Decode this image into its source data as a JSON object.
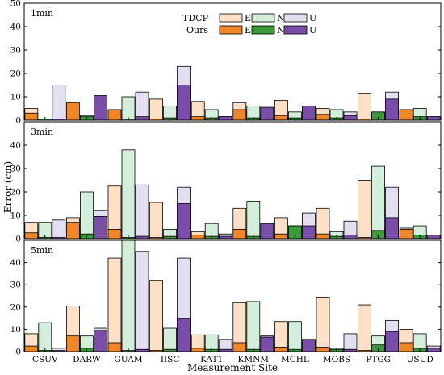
{
  "chart_data": {
    "type": "bar",
    "xlabel": "Measurement Site",
    "ylabel": "Error (cm)",
    "ylim": [
      0,
      50
    ],
    "yticks": [
      0,
      10,
      20,
      30,
      40,
      50
    ],
    "categories": [
      "CSUV",
      "DARW",
      "GUAM",
      "IISC",
      "KAT1",
      "KMNM",
      "MCHL",
      "MOBS",
      "PTGG",
      "USUD"
    ],
    "legend": {
      "placement": "top-center",
      "groups": [
        {
          "name": "TDCP",
          "entries": [
            "E",
            "N",
            "U"
          ]
        },
        {
          "name": "Ours",
          "entries": [
            "E",
            "N",
            "U"
          ]
        }
      ]
    },
    "colors": {
      "tdcp_e": "#fde0c5",
      "tdcp_n": "#d3efdc",
      "tdcp_u": "#e3def0",
      "ours_e": "#f28627",
      "ours_n": "#3a9a3a",
      "ours_u": "#7a4ea8",
      "edge": "#000000"
    },
    "panels": [
      {
        "label": "1min",
        "series": [
          {
            "name": "TDCP E",
            "values": [
              5.0,
              0,
              4.5,
              9.0,
              8.0,
              7.5,
              8.5,
              5.0,
              11.5,
              4.5
            ]
          },
          {
            "name": "TDCP N",
            "values": [
              0,
              2.0,
              10.0,
              6.0,
              4.5,
              6.0,
              3.5,
              4.5,
              3.5,
              5.0
            ]
          },
          {
            "name": "TDCP U",
            "values": [
              15.0,
              0,
              12.0,
              23.0,
              1.5,
              5.0,
              6.0,
              3.5,
              12.0,
              1.5
            ]
          },
          {
            "name": "Ours E",
            "values": [
              3.0,
              7.5,
              4.5,
              0.5,
              1.5,
              4.5,
              2.0,
              2.5,
              0.5,
              4.5
            ]
          },
          {
            "name": "Ours N",
            "values": [
              0.5,
              1.5,
              0.5,
              1.0,
              1.0,
              1.0,
              1.0,
              1.0,
              3.5,
              1.5
            ]
          },
          {
            "name": "Ours U",
            "values": [
              0.5,
              10.5,
              1.5,
              15.0,
              1.5,
              5.5,
              6.0,
              2.0,
              9.0,
              1.5
            ]
          }
        ]
      },
      {
        "label": "3min",
        "series": [
          {
            "name": "TDCP E",
            "values": [
              7.0,
              9.0,
              22.5,
              15.5,
              3.0,
              13.0,
              9.0,
              13.0,
              25.0,
              4.5
            ]
          },
          {
            "name": "TDCP N",
            "values": [
              7.0,
              20.0,
              38.0,
              4.0,
              6.5,
              16.0,
              5.5,
              3.0,
              31.0,
              5.5
            ]
          },
          {
            "name": "TDCP U",
            "values": [
              8.0,
              12.0,
              23.0,
              22.0,
              2.0,
              6.0,
              11.0,
              7.5,
              22.0,
              1.5
            ]
          },
          {
            "name": "Ours E",
            "values": [
              2.5,
              7.0,
              4.0,
              0.5,
              1.5,
              4.0,
              2.0,
              2.0,
              0.5,
              4.0
            ]
          },
          {
            "name": "Ours N",
            "values": [
              0.5,
              2.0,
              0.5,
              1.0,
              1.0,
              1.0,
              5.5,
              1.0,
              3.5,
              1.5
            ]
          },
          {
            "name": "Ours U",
            "values": [
              0.5,
              9.5,
              1.0,
              15.0,
              1.0,
              6.5,
              5.5,
              1.5,
              9.0,
              1.5
            ]
          }
        ]
      },
      {
        "label": "5min",
        "series": [
          {
            "name": "TDCP E",
            "values": [
              8.0,
              20.5,
              42.0,
              32.0,
              7.5,
              22.0,
              13.5,
              24.5,
              21.0,
              10.0
            ]
          },
          {
            "name": "TDCP N",
            "values": [
              13.0,
              7.0,
              50.0,
              10.5,
              7.5,
              22.5,
              13.5,
              1.5,
              7.0,
              8.0
            ]
          },
          {
            "name": "TDCP U",
            "values": [
              1.5,
              10.5,
              45.0,
              42.0,
              5.5,
              7.0,
              5.5,
              8.0,
              14.0,
              2.5
            ]
          },
          {
            "name": "Ours E",
            "values": [
              2.5,
              7.0,
              4.0,
              0.5,
              1.5,
              4.0,
              2.0,
              2.0,
              0.5,
              4.0
            ]
          },
          {
            "name": "Ours N",
            "values": [
              0.5,
              1.5,
              0.5,
              1.0,
              1.0,
              1.0,
              1.0,
              1.0,
              3.0,
              1.5
            ]
          },
          {
            "name": "Ours U",
            "values": [
              0.5,
              9.5,
              1.0,
              15.0,
              1.0,
              6.5,
              5.5,
              1.0,
              9.0,
              1.5
            ]
          }
        ]
      }
    ]
  }
}
